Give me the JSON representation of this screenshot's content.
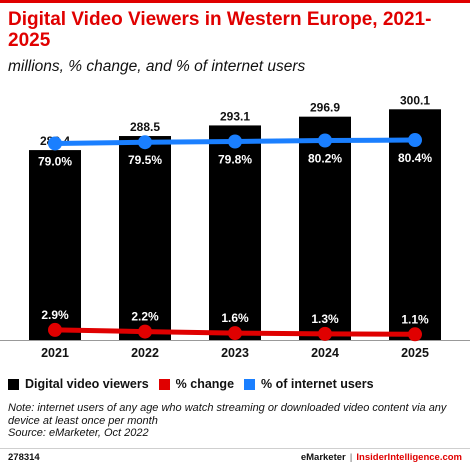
{
  "header": {
    "title": "Digital Video Viewers in Western Europe, 2021-2025",
    "subtitle": "millions, % change, and % of internet users"
  },
  "legend": [
    {
      "label": "Digital video viewers",
      "color": "#000000"
    },
    {
      "label": "% change",
      "color": "#e00000"
    },
    {
      "label": "% of internet users",
      "color": "#1a7fff"
    }
  ],
  "footer": {
    "note": "Note: internet users of any age who watch streaming or downloaded video content via any device at least once per month",
    "source": "Source: eMarketer, Oct 2022",
    "chart_id": "278314",
    "brand_left": "eMarketer",
    "brand_sep": "|",
    "brand_right": "InsiderIntelligence.com"
  },
  "colors": {
    "accent": "#e00000",
    "bar": "#000000",
    "pct_change": "#e00000",
    "pct_internet": "#1a7fff"
  },
  "chart_data": {
    "type": "bar",
    "categories": [
      "2021",
      "2022",
      "2023",
      "2024",
      "2025"
    ],
    "series": [
      {
        "name": "Digital video viewers",
        "type": "bar",
        "values": [
          282.4,
          288.5,
          293.1,
          296.9,
          300.1
        ],
        "labels": [
          "282.4",
          "288.5",
          "293.1",
          "296.9",
          "300.1"
        ]
      },
      {
        "name": "% change",
        "type": "line",
        "values": [
          2.9,
          2.2,
          1.6,
          1.3,
          1.1
        ],
        "labels": [
          "2.9%",
          "2.2%",
          "1.6%",
          "1.3%",
          "1.1%"
        ]
      },
      {
        "name": "% of internet users",
        "type": "line",
        "values": [
          79.0,
          79.5,
          79.8,
          80.2,
          80.4
        ],
        "labels": [
          "79.0%",
          "79.5%",
          "79.8%",
          "80.2%",
          "80.4%"
        ]
      }
    ],
    "title": "Digital Video Viewers in Western Europe, 2021-2025",
    "subtitle": "millions, % change, and % of internet users",
    "legend_position": "bottom-left",
    "grid": false
  }
}
